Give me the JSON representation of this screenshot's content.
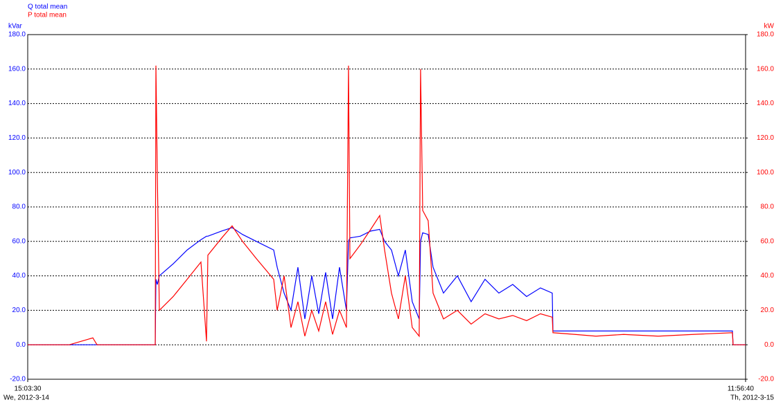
{
  "chart_data": {
    "type": "line",
    "y_unit": "kVar",
    "y2_unit": "kW",
    "x": [
      0,
      24.2,
      72.6,
      113.7,
      121.0,
      222.6,
      223.8,
      226.2,
      229.8,
      254.0,
      278.3,
      302.4,
      312.1,
      314.5,
      338.7,
      356.8,
      375.0,
      399.2,
      429.4,
      435.5,
      447.6,
      459.6,
      471.7,
      483.8,
      495.9,
      508.0,
      520.1,
      532.2,
      544.3,
      556.4,
      560.0,
      562.5,
      580.6,
      598.8,
      614.5,
      623.0,
      635.0,
      647.1,
      659.2,
      671.3,
      683.4,
      685.8,
      689.5,
      699.1,
      707.6,
      725.8,
      750.0,
      774.1,
      798.3,
      822.5,
      846.7,
      870.9,
      895.1,
      915.7,
      916.9,
      955.6,
      991.9,
      1040.3,
      1100.7,
      1161.2,
      1230.2,
      1231.4,
      1253.2
    ],
    "xlim": [
      0,
      1253.2
    ],
    "xticks": [
      {
        "value": 0,
        "label": "15:03:30"
      },
      {
        "value": 1253.2,
        "label": "11:56:40"
      }
    ],
    "xtick_days": [
      "We, 2012-3-14",
      "Th, 2012-3-15"
    ],
    "ylim": [
      -20,
      180
    ],
    "yticks": [
      {
        "value": -20,
        "label": "-20.0"
      },
      {
        "value": 0,
        "label": "0.0"
      },
      {
        "value": 20,
        "label": "20.0"
      },
      {
        "value": 40,
        "label": "40.0"
      },
      {
        "value": 60,
        "label": "60.0"
      },
      {
        "value": 80,
        "label": "80.0"
      },
      {
        "value": 100,
        "label": "100.0"
      },
      {
        "value": 120,
        "label": "120.0"
      },
      {
        "value": 140,
        "label": "140.0"
      },
      {
        "value": 160,
        "label": "160.0"
      },
      {
        "value": 180,
        "label": "180.0"
      }
    ],
    "y2lim": [
      -20,
      180
    ],
    "y2ticks": [
      {
        "value": -20,
        "label": "-20.0"
      },
      {
        "value": 0,
        "label": "0.0"
      },
      {
        "value": 20,
        "label": "20.0"
      },
      {
        "value": 40,
        "label": "40.0"
      },
      {
        "value": 60,
        "label": "60.0"
      },
      {
        "value": 80,
        "label": "80.0"
      },
      {
        "value": 100,
        "label": "100.0"
      },
      {
        "value": 120,
        "label": "120.0"
      },
      {
        "value": 140,
        "label": "140.0"
      },
      {
        "value": 160,
        "label": "160.0"
      },
      {
        "value": 180,
        "label": "180.0"
      }
    ],
    "grid": true,
    "series": [
      {
        "name": "Q total mean",
        "color": "#0000ff",
        "axis": "y",
        "values": [
          0,
          0,
          0,
          0,
          0,
          0,
          38,
          35,
          40,
          47,
          55,
          61,
          63,
          63,
          66,
          68,
          64,
          60,
          55,
          45,
          30,
          20,
          45,
          15,
          40,
          18,
          42,
          15,
          45,
          20,
          60,
          62,
          63,
          66,
          67,
          60,
          55,
          40,
          55,
          25,
          15,
          60,
          65,
          64,
          45,
          30,
          40,
          25,
          38,
          30,
          35,
          28,
          33,
          30,
          8,
          8,
          8,
          8,
          8,
          8,
          8,
          0,
          0
        ]
      },
      {
        "name": "P total mean",
        "color": "#ff0000",
        "axis": "y2",
        "values": [
          0,
          0,
          0,
          4,
          0,
          0,
          162,
          100,
          20,
          28,
          38,
          48,
          2,
          52,
          62,
          69,
          60,
          50,
          38,
          20,
          40,
          10,
          25,
          5,
          20,
          8,
          25,
          6,
          20,
          10,
          162,
          50,
          58,
          67,
          75,
          55,
          30,
          15,
          40,
          10,
          5,
          160,
          78,
          72,
          30,
          15,
          20,
          12,
          18,
          15,
          17,
          14,
          18,
          16,
          7,
          6,
          5,
          6,
          5,
          6,
          7,
          0,
          0
        ]
      }
    ]
  }
}
